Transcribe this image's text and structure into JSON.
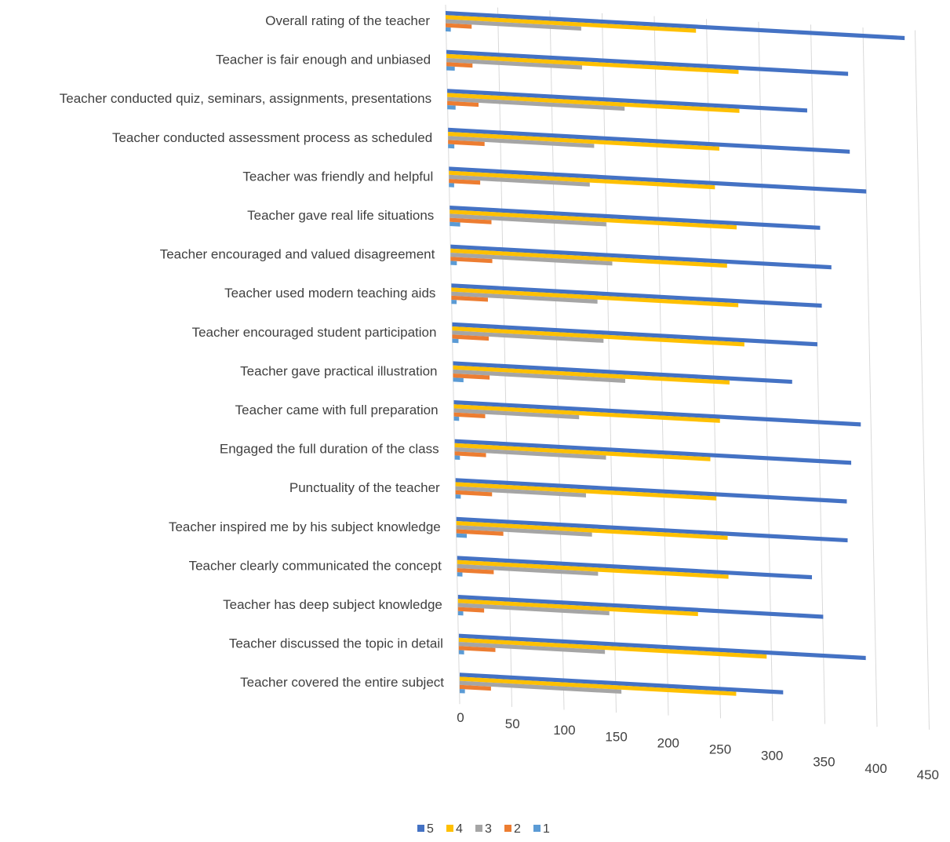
{
  "chart_data": {
    "type": "bar",
    "orientation": "horizontal",
    "categories": [
      "Overall rating of the teacher",
      "Teacher is fair enough and unbiased",
      "Teacher conducted quiz, seminars, assignments, presentations",
      "Teacher conducted assessment process as scheduled",
      "Teacher was friendly and helpful",
      "Teacher gave real life situations",
      "Teacher encouraged and valued disagreement",
      "Teacher used modern teaching aids",
      "Teacher encouraged student participation",
      "Teacher gave practical illustration",
      "Teacher came with full preparation",
      "Engaged the full duration of the class",
      "Punctuality of the teacher",
      "Teacher inspired me by his subject knowledge",
      "Teacher clearly communicated the concept",
      "Teacher has deep subject knowledge",
      "Teacher discussed the topic in detail",
      "Teacher covered the entire subject"
    ],
    "series": [
      {
        "name": "5",
        "color": "#4472C4",
        "values": [
          440,
          385,
          345,
          385,
          400,
          355,
          365,
          355,
          350,
          325,
          390,
          380,
          375,
          375,
          340,
          350,
          390,
          310
        ]
      },
      {
        "name": "4",
        "color": "#FFC000",
        "values": [
          240,
          280,
          280,
          260,
          255,
          275,
          265,
          275,
          280,
          265,
          255,
          245,
          250,
          260,
          260,
          230,
          295,
          265
        ]
      },
      {
        "name": "3",
        "color": "#A5A5A5",
        "values": [
          130,
          130,
          170,
          140,
          135,
          150,
          155,
          140,
          145,
          165,
          120,
          145,
          125,
          130,
          135,
          145,
          140,
          155
        ]
      },
      {
        "name": "2",
        "color": "#ED7D31",
        "values": [
          25,
          25,
          30,
          35,
          30,
          40,
          40,
          35,
          35,
          35,
          30,
          30,
          35,
          45,
          35,
          25,
          35,
          30
        ]
      },
      {
        "name": "1",
        "color": "#5B9BD5",
        "values": [
          5,
          8,
          8,
          6,
          5,
          10,
          6,
          5,
          6,
          10,
          5,
          5,
          5,
          10,
          5,
          5,
          5,
          5
        ]
      }
    ],
    "xticks": [
      "0",
      "50",
      "100",
      "150",
      "200",
      "250",
      "300",
      "350",
      "400",
      "450"
    ],
    "xlim": [
      0,
      450
    ],
    "title": "",
    "xlabel": "",
    "ylabel": "",
    "grid": true,
    "legend_position": "bottom"
  }
}
